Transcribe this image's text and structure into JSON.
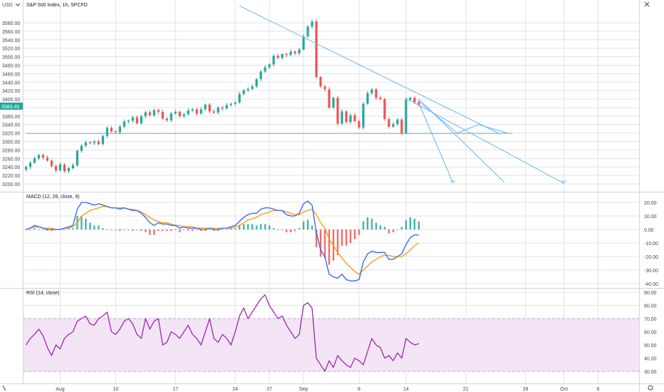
{
  "header": {
    "currency": "USD",
    "symbol_line": "S&P 500 Index, 1h, SPCFD",
    "scale_icon": "chevron-down-icon",
    "top_left_icon": "close-icon",
    "time_axis_icon": "settings-icon"
  },
  "colors": {
    "up": "#26a69a",
    "down": "#ef5350",
    "macd": "#2962ff",
    "signal": "#ff9800",
    "rsi": "#9c27b0",
    "rsi_band": "#f3e5f5",
    "drawing": "#64b5f6",
    "grid": "#e0e3eb",
    "axis_text": "#434651",
    "price_marker": "#26a69a"
  },
  "chart_data": [
    {
      "type": "candlestick",
      "title": "S&P 500 Index, 1h, SPCFD",
      "ylim": [
        3190,
        3600
      ],
      "y_ticks": [
        "3200.00",
        "3220.00",
        "3240.00",
        "3260.00",
        "3280.00",
        "3300.00",
        "3320.00",
        "3340.00",
        "3360.00",
        "3380.00",
        "3400.00",
        "3420.00",
        "3440.00",
        "3460.00",
        "3480.00",
        "3500.00",
        "3520.00",
        "3540.00",
        "3560.00",
        "3580.00"
      ],
      "x_labels": [
        {
          "label": "Aug",
          "i": 8
        },
        {
          "label": "10",
          "i": 21
        },
        {
          "label": "17",
          "i": 35
        },
        {
          "label": "24",
          "i": 49
        },
        {
          "label": "27",
          "i": 57
        },
        {
          "label": "Sep",
          "i": 65
        },
        {
          "label": "8",
          "i": 78
        },
        {
          "label": "14",
          "i": 89
        },
        {
          "label": "21",
          "i": 103
        },
        {
          "label": "28",
          "i": 117
        },
        {
          "label": "Oct",
          "i": 126
        },
        {
          "label": "6",
          "i": 134
        }
      ],
      "x_range": [
        0,
        143
      ],
      "closes": [
        3240,
        3250,
        3260,
        3268,
        3262,
        3255,
        3242,
        3232,
        3246,
        3230,
        3237,
        3244,
        3278,
        3290,
        3298,
        3297,
        3300,
        3294,
        3313,
        3332,
        3324,
        3322,
        3335,
        3347,
        3349,
        3357,
        3343,
        3360,
        3369,
        3362,
        3374,
        3370,
        3354,
        3350,
        3366,
        3370,
        3360,
        3364,
        3373,
        3376,
        3366,
        3376,
        3387,
        3371,
        3368,
        3380,
        3378,
        3386,
        3389,
        3392,
        3412,
        3421,
        3424,
        3430,
        3447,
        3465,
        3475,
        3482,
        3502,
        3497,
        3506,
        3504,
        3512,
        3508,
        3517,
        3548,
        3571,
        3583,
        3452,
        3430,
        3423,
        3380,
        3403,
        3342,
        3371,
        3346,
        3362,
        3348,
        3333,
        3389,
        3414,
        3423,
        3403,
        3400,
        3353,
        3335,
        3341,
        3352,
        3319,
        3399,
        3403,
        3393,
        3386
      ],
      "ranges": [
        [
          22,
          12,
          1
        ],
        [
          33,
          53,
          33,
          0
        ],
        [
          36,
          44,
          0
        ],
        [
          59,
          60,
          0
        ],
        [
          64,
          0,
          65
        ],
        [
          67,
          69,
          1
        ],
        [
          70,
          72,
          0
        ]
      ],
      "price_marker": {
        "label": "3383.45",
        "value": 3383.45
      }
    },
    {
      "type": "line",
      "title": "MACD (12, 26, close, 9)",
      "ylim": [
        -42,
        25
      ],
      "y_ticks": [
        "20.00",
        "10.00",
        "0.00",
        "-10.00",
        "-20.00",
        "-30.00",
        "-40.00"
      ],
      "series": [
        {
          "name": "MACD",
          "values": [
            0,
            1,
            3,
            2,
            1,
            0,
            0,
            0,
            0,
            1,
            2,
            3,
            15,
            20,
            20,
            19,
            18,
            19,
            18,
            17,
            16,
            16,
            15,
            16,
            15,
            14,
            14,
            12,
            9,
            5,
            3,
            5,
            4,
            4,
            3,
            3,
            1,
            2,
            1,
            1,
            1,
            0,
            0,
            1,
            0,
            0,
            1,
            1,
            2,
            3,
            6,
            9,
            11,
            12,
            12,
            15,
            16,
            16,
            15,
            14,
            14,
            11,
            10,
            10,
            12,
            19,
            21,
            18,
            -2,
            -15,
            -20,
            -33,
            -35,
            -36,
            -33,
            -37,
            -38,
            -38,
            -37,
            -24,
            -18,
            -16,
            -17,
            -17,
            -17,
            -22,
            -22,
            -20,
            -18,
            -11,
            -6,
            -4,
            -4
          ]
        },
        {
          "name": "Signal",
          "values": [
            0,
            1,
            2,
            2,
            1,
            1,
            1,
            0,
            0,
            1,
            1,
            2,
            5,
            10,
            12,
            14,
            15,
            16,
            17,
            17,
            16,
            16,
            16,
            16,
            15,
            15,
            14,
            13,
            11,
            9,
            7,
            6,
            5,
            5,
            4,
            3,
            3,
            2,
            2,
            2,
            1,
            1,
            1,
            1,
            1,
            1,
            1,
            1,
            1,
            2,
            3,
            5,
            7,
            8,
            9,
            11,
            12,
            13,
            14,
            14,
            14,
            13,
            12,
            11,
            11,
            13,
            14,
            15,
            11,
            5,
            1,
            -7,
            -12,
            -17,
            -21,
            -25,
            -28,
            -31,
            -33,
            -30,
            -27,
            -24,
            -22,
            -20,
            -19,
            -19,
            -20,
            -20,
            -20,
            -18,
            -15,
            -12,
            -10
          ]
        }
      ],
      "histogram": [
        0,
        0,
        1,
        0,
        0,
        -1,
        -1,
        0,
        0,
        0,
        1,
        1,
        10,
        10,
        8,
        5,
        3,
        3,
        1,
        0,
        0,
        0,
        -1,
        0,
        0,
        -1,
        0,
        -1,
        -2,
        -4,
        -4,
        -1,
        -1,
        -1,
        -1,
        0,
        -2,
        0,
        -1,
        -1,
        0,
        -1,
        -1,
        0,
        -1,
        -1,
        0,
        0,
        1,
        1,
        3,
        4,
        4,
        4,
        3,
        4,
        4,
        3,
        1,
        0,
        0,
        -2,
        -2,
        -1,
        1,
        6,
        7,
        3,
        -13,
        -20,
        -21,
        -26,
        -23,
        -19,
        -12,
        -12,
        -10,
        -7,
        -4,
        6,
        9,
        8,
        5,
        3,
        2,
        -3,
        -2,
        0,
        2,
        7,
        9,
        8,
        6
      ]
    },
    {
      "type": "line",
      "title": "RSI (14, close)",
      "ylim": [
        25,
        92
      ],
      "y_ticks": [
        "90.00",
        "80.00",
        "70.00",
        "60.00",
        "50.00",
        "40.00",
        "30.00"
      ],
      "band": [
        30,
        70
      ],
      "series": [
        {
          "name": "RSI",
          "values": [
            50,
            55,
            58,
            62,
            57,
            48,
            42,
            50,
            47,
            55,
            58,
            60,
            68,
            70,
            72,
            66,
            65,
            70,
            72,
            75,
            60,
            58,
            62,
            68,
            70,
            66,
            58,
            55,
            70,
            62,
            68,
            70,
            50,
            52,
            60,
            58,
            55,
            60,
            65,
            58,
            55,
            50,
            60,
            70,
            55,
            52,
            58,
            55,
            50,
            60,
            72,
            78,
            70,
            75,
            80,
            85,
            88,
            80,
            75,
            70,
            72,
            65,
            60,
            55,
            58,
            80,
            82,
            78,
            40,
            35,
            30,
            38,
            33,
            42,
            38,
            35,
            33,
            40,
            38,
            35,
            45,
            55,
            50,
            48,
            40,
            42,
            38,
            44,
            40,
            55,
            52,
            50,
            51
          ]
        }
      ]
    }
  ]
}
